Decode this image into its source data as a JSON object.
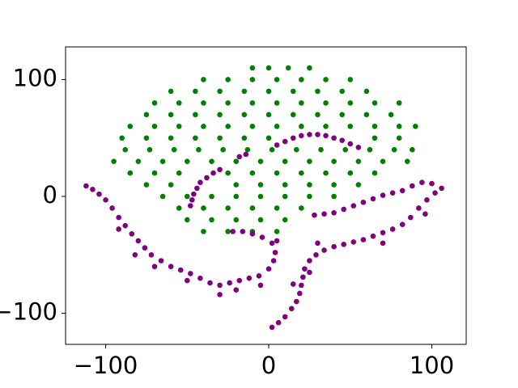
{
  "chart_data": {
    "type": "scatter",
    "xlim": [
      -124.6,
      121.1
    ],
    "ylim": [
      -126.6,
      128
    ],
    "xticks": [
      {
        "value": -100,
        "label": "−100"
      },
      0,
      100
    ],
    "yticks": [
      {
        "value": -100,
        "label": "−100"
      },
      0,
      100
    ],
    "series": [
      {
        "color": "#008000",
        "x": [
          -10,
          0,
          12,
          25,
          -40,
          -25,
          -10,
          5,
          20,
          35,
          50,
          -60,
          -45,
          -30,
          -15,
          0,
          15,
          30,
          45,
          60,
          -70,
          -55,
          -40,
          -25,
          -10,
          5,
          20,
          35,
          50,
          65,
          80,
          -75,
          -60,
          -45,
          -30,
          -15,
          0,
          15,
          30,
          45,
          60,
          75,
          -85,
          -70,
          -55,
          -40,
          -25,
          -10,
          5,
          20,
          35,
          50,
          65,
          80,
          90,
          -90,
          -75,
          -60,
          -45,
          -30,
          -15,
          0,
          65,
          80,
          -88,
          -73,
          -58,
          -43,
          -28,
          -13,
          2,
          17,
          32,
          47,
          62,
          77,
          88,
          -95,
          -80,
          -65,
          -50,
          -35,
          -20,
          -5,
          10,
          25,
          40,
          55,
          70,
          85,
          -85,
          -70,
          -55,
          -25,
          -10,
          5,
          20,
          35,
          50,
          65,
          -75,
          -60,
          -20,
          -5,
          10,
          25,
          40,
          55,
          -65,
          -50,
          -35,
          -20,
          -5,
          10,
          25,
          40,
          -55,
          -40,
          -25,
          -10,
          5,
          20,
          -50,
          -35,
          -20,
          -5,
          10,
          -40,
          -25,
          -10,
          5
        ],
        "values": [
          110,
          110,
          110,
          110,
          100,
          100,
          100,
          100,
          100,
          100,
          100,
          90,
          90,
          90,
          90,
          90,
          90,
          90,
          90,
          90,
          80,
          80,
          80,
          80,
          80,
          80,
          80,
          80,
          80,
          80,
          80,
          70,
          70,
          70,
          70,
          70,
          70,
          70,
          70,
          70,
          70,
          70,
          60,
          60,
          60,
          60,
          60,
          60,
          60,
          60,
          60,
          60,
          60,
          60,
          60,
          50,
          50,
          50,
          50,
          50,
          50,
          50,
          50,
          50,
          40,
          40,
          40,
          40,
          40,
          40,
          40,
          40,
          40,
          40,
          40,
          40,
          40,
          30,
          30,
          30,
          30,
          30,
          30,
          30,
          30,
          30,
          30,
          30,
          30,
          30,
          20,
          20,
          20,
          20,
          20,
          20,
          20,
          20,
          20,
          20,
          10,
          10,
          10,
          10,
          10,
          10,
          10,
          10,
          0,
          0,
          0,
          0,
          0,
          0,
          0,
          0,
          -10,
          -10,
          -10,
          -10,
          -10,
          -10,
          -20,
          -20,
          -20,
          -20,
          -20,
          -30,
          -30,
          -30,
          -30
        ]
      },
      {
        "color": "#800080",
        "x": [
          5,
          10,
          15,
          20,
          25,
          30,
          35,
          40,
          45,
          50,
          55,
          -48,
          -47,
          -46,
          -44,
          -42,
          -38,
          -34,
          -30,
          -18,
          -14,
          -112,
          -108,
          -104,
          -100,
          -96,
          -92,
          -88,
          -84,
          -80,
          -76,
          -72,
          -66,
          -60,
          -54,
          -48,
          -42,
          -36,
          -30,
          -24,
          -18,
          -12,
          -6,
          0,
          3,
          4,
          2,
          -4,
          -10,
          -16,
          -22,
          -92,
          -82,
          -70,
          -50,
          -30,
          -20,
          -5,
          5,
          2,
          6,
          10,
          14,
          17,
          19,
          20,
          21,
          22,
          25,
          29,
          34,
          40,
          46,
          52,
          58,
          64,
          70,
          76,
          82,
          87,
          92,
          97,
          102,
          106,
          100,
          94,
          88,
          82,
          76,
          70,
          64,
          58,
          52,
          46,
          40,
          34,
          28,
          15,
          25,
          30,
          70,
          96
        ],
        "values": [
          44,
          47,
          50,
          52,
          53,
          53,
          52,
          50,
          48,
          45,
          42,
          -8,
          -3,
          2,
          7,
          12,
          16,
          20,
          23,
          34,
          36,
          9,
          6,
          2,
          -3,
          -10,
          -18,
          -25,
          -32,
          -38,
          -44,
          -50,
          -55,
          -60,
          -63,
          -66,
          -70,
          -74,
          -76,
          -74,
          -72,
          -70,
          -68,
          -62,
          -55,
          -48,
          -40,
          -35,
          -32,
          -30,
          -30,
          -28,
          -50,
          -60,
          -72,
          -84,
          -80,
          -76,
          -38,
          -112,
          -108,
          -103,
          -96,
          -90,
          -83,
          -76,
          -69,
          -62,
          -55,
          -50,
          -46,
          -43,
          -41,
          -39,
          -37,
          -34,
          -31,
          -28,
          -24,
          -18,
          -10,
          -3,
          3,
          7,
          11,
          12,
          9,
          5,
          3,
          1,
          -2,
          -5,
          -8,
          -11,
          -14,
          -15,
          -16,
          -75,
          -65,
          -40,
          -40,
          -15
        ]
      }
    ]
  }
}
